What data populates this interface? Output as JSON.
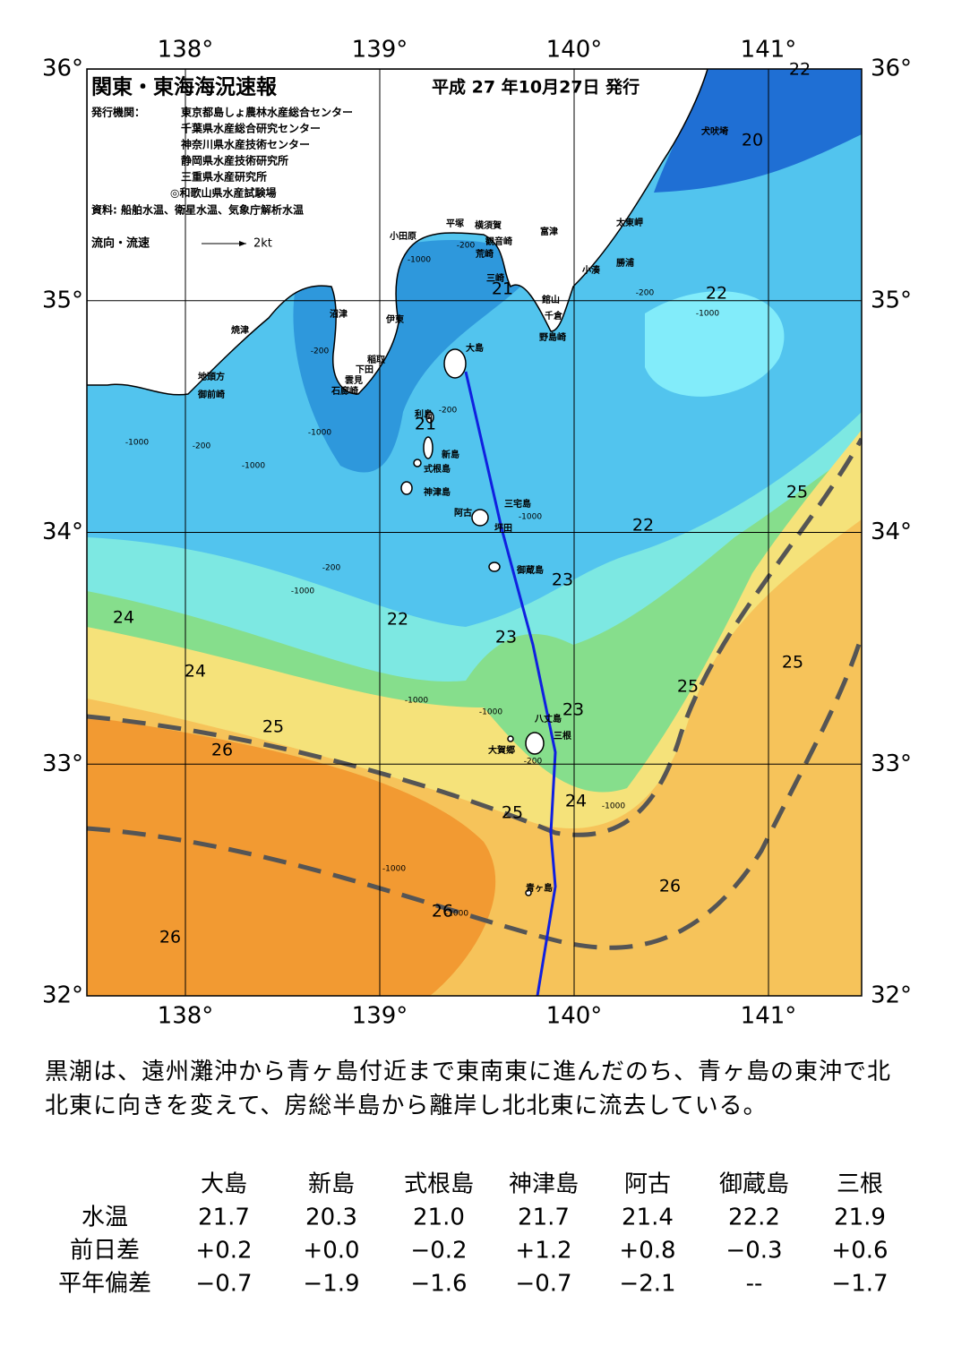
{
  "header": {
    "title": "関東・東海海況速報",
    "date": "平成 27 年10月27日 発行",
    "publisher_label": "発行機関：",
    "publishers": [
      "東京都島しょ農林水産総合センター",
      "千葉県水産総合研究センター",
      "神奈川県水産技術センター",
      "静岡県水産技術研究所",
      "三重県水産研究所",
      "◎和歌山県水産試験場"
    ],
    "source": "資料: 船舶水温、衛星水温、気象庁解析水温",
    "legend_label": "流向・流速",
    "legend_scale": "2kt"
  },
  "axes": {
    "lon_ticks": [
      {
        "value": 138,
        "label": "138°"
      },
      {
        "value": 139,
        "label": "139°"
      },
      {
        "value": 140,
        "label": "140°"
      },
      {
        "value": 141,
        "label": "141°"
      }
    ],
    "lat_ticks": [
      {
        "value": 36,
        "label": "36°"
      },
      {
        "value": 35,
        "label": "35°"
      },
      {
        "value": 34,
        "label": "34°"
      },
      {
        "value": 33,
        "label": "33°"
      },
      {
        "value": 32,
        "label": "32°"
      }
    ]
  },
  "place_names": [
    "犬吠埼",
    "太東岬",
    "勝浦",
    "小湊",
    "富津",
    "横須賀",
    "観音崎",
    "平塚",
    "荒崎",
    "小田原",
    "三崎",
    "館山",
    "千倉",
    "野島崎",
    "沼津",
    "伊東",
    "焼津",
    "稲取",
    "下田",
    "雲見",
    "石廊崎",
    "地頭方",
    "御前崎",
    "大島",
    "利島",
    "新島",
    "式根島",
    "神津島",
    "三宅島",
    "阿古",
    "坪田",
    "御蔵島",
    "八丈島",
    "三根",
    "大賀郷",
    "青ヶ島"
  ],
  "isotherm_labels": [
    22,
    20,
    21,
    22,
    21,
    22,
    25,
    23,
    24,
    22,
    23,
    24,
    25,
    25,
    23,
    25,
    26,
    24,
    25,
    26,
    26,
    26
  ],
  "isobath_labels": [
    "-200",
    "-1000",
    "-200",
    "-1000",
    "-200",
    "-1000",
    "-200",
    "-1000",
    "-1000",
    "-200",
    "-1000",
    "-200",
    "-1000",
    "-1000",
    "-1000",
    "-200",
    "-1000",
    "-1000",
    "-1000"
  ],
  "summary": "黒潮は、遠州灘沖から青ヶ島付近まで東南東に進んだのち、青ヶ島の東沖で北北東に向きを変えて、房総半島から離岸し北北東に流去している。",
  "table": {
    "columns": [
      "大島",
      "新島",
      "式根島",
      "神津島",
      "阿古",
      "御蔵島",
      "三根"
    ],
    "rows": [
      {
        "label": "水温",
        "values": [
          "21.7",
          "20.3",
          "21.0",
          "21.7",
          "21.4",
          "22.2",
          "21.9"
        ]
      },
      {
        "label": "前日差",
        "values": [
          "+0.2",
          "+0.0",
          "−0.2",
          "+1.2",
          "+0.8",
          "−0.3",
          "+0.6"
        ]
      },
      {
        "label": "平年偏差",
        "values": [
          "−0.7",
          "−1.9",
          "−1.6",
          "−0.7",
          "−2.1",
          "--",
          "−1.7"
        ]
      }
    ]
  }
}
